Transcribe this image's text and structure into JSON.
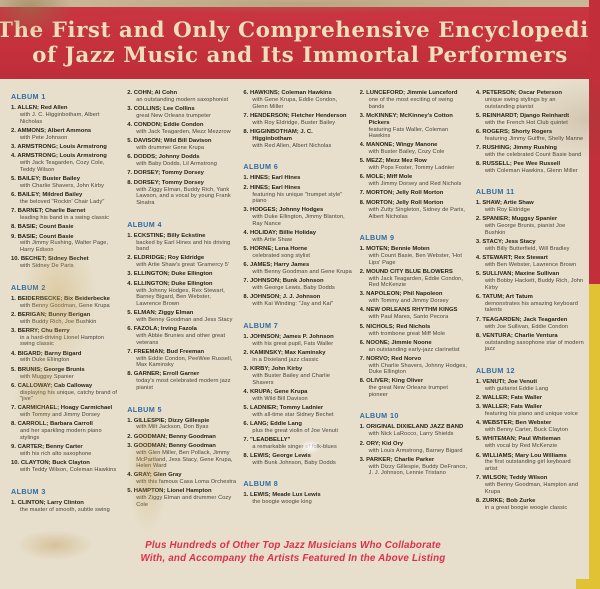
{
  "header": {
    "title_line1": "The First and Only Comprehensive Encyclopedia",
    "title_line2": "of Jazz Music and Its Immortal Performers"
  },
  "footer": {
    "line1": "Plus Hundreds of Other Top Jazz Musicians Who Collaborate",
    "line2": "With, and Accompany the Artists Featured In the Above Listing"
  },
  "colors": {
    "banner_red": "#c5313c",
    "paper_cream": "#e7dfcc",
    "album_heading_blue": "#2e6da3",
    "entry_black": "#262419",
    "footer_red": "#de3048",
    "edge_yellow": "#e2c235"
  },
  "columns": [
    [
      {
        "t": "h",
        "label": "ALBUM 1"
      },
      {
        "t": "e",
        "num": "1.",
        "name": "ALLEN; Red Allen",
        "detail": "with J. C. Higginbotham, Albert Nicholas"
      },
      {
        "t": "e",
        "num": "2.",
        "name": "AMMONS; Albert Ammons",
        "detail": "with Pete Johnson"
      },
      {
        "t": "e",
        "num": "3.",
        "name": "ARMSTRONG; Louis Armstrong"
      },
      {
        "t": "e",
        "num": "4.",
        "name": "ARMSTRONG; Louis Armstrong",
        "detail": "with Jack Teagarden, Cozy Cole, Teddy Wilson"
      },
      {
        "t": "e",
        "num": "5.",
        "name": "BAILEY; Buster Bailey",
        "detail": "with Charlie Shavers, John Kirby"
      },
      {
        "t": "e",
        "num": "6.",
        "name": "BAILEY; Mildred Bailey",
        "detail": "the beloved \"Rockin' Chair Lady\""
      },
      {
        "t": "e",
        "num": "7.",
        "name": "BARNET; Charlie Barnet",
        "detail": "leading his band in a swing classic"
      },
      {
        "t": "e",
        "num": "8.",
        "name": "BASIE; Count Basie"
      },
      {
        "t": "e",
        "num": "9.",
        "name": "BASIE; Count Basie",
        "detail": "with Jimmy Rushing, Walter Page, Harry Edison"
      },
      {
        "t": "e",
        "num": "10.",
        "name": "BECHET; Sidney Bechet",
        "detail": "with Sidney De Paris"
      },
      {
        "t": "h",
        "label": "ALBUM 2"
      },
      {
        "t": "e",
        "num": "1.",
        "name": "BEIDERBECKE; Bix Beiderbecke",
        "detail": "with Benny Goodman, Gene Krupa"
      },
      {
        "t": "e",
        "num": "2.",
        "name": "BERIGAN; Bunny Berigan",
        "detail": "with Buddy Rich, Joe Bushkin"
      },
      {
        "t": "e",
        "num": "3.",
        "name": "BERRY; Chu Berry",
        "detail": "in a hard-driving Lionel Hampton swing classic"
      },
      {
        "t": "e",
        "num": "4.",
        "name": "BIGARD; Barny Bigard",
        "detail": "with Duke Ellington"
      },
      {
        "t": "e",
        "num": "5.",
        "name": "BRUNIS; George Brunis",
        "detail": "with Muggsy Spanier"
      },
      {
        "t": "e",
        "num": "6.",
        "name": "CALLOWAY; Cab Calloway",
        "detail": "displaying his unique, catchy brand of \"jive\""
      },
      {
        "t": "e",
        "num": "7.",
        "name": "CARMICHAEL; Hoagy Carmichael",
        "detail": "with Tommy and Jimmy Dorsey"
      },
      {
        "t": "e",
        "num": "8.",
        "name": "CARROLL; Barbara Carroll",
        "detail": "and her sparkling modern piano stylings"
      },
      {
        "t": "e",
        "num": "9.",
        "name": "CARTER; Benny Carter",
        "detail": "with his rich alto saxophone"
      },
      {
        "t": "e",
        "num": "10.",
        "name": "CLAYTON; Buck Clayton",
        "detail": "with Teddy Wilson, Coleman Hawkins"
      },
      {
        "t": "h",
        "label": "ALBUM 3"
      },
      {
        "t": "e",
        "num": "1.",
        "name": "CLINTON; Larry Clinton",
        "detail": "the master of smooth, subtle swing"
      }
    ],
    [
      {
        "t": "e",
        "num": "2.",
        "name": "COHN; Al Cohn",
        "detail": "an outstanding modern saxophonist"
      },
      {
        "t": "e",
        "num": "3.",
        "name": "COLLINS; Lee Collins",
        "detail": "great New Orleans trumpeter"
      },
      {
        "t": "e",
        "num": "4.",
        "name": "CONDON; Eddie Condon",
        "detail": "with Jack Teagarden, Mezz Mezzrow"
      },
      {
        "t": "e",
        "num": "5.",
        "name": "DAVISON; Wild Bill Davison",
        "detail": "with drummer Gene Krupa"
      },
      {
        "t": "e",
        "num": "6.",
        "name": "DODDS; Johnny Dodds",
        "detail": "with Baby Dodds, Lil Armstrong"
      },
      {
        "t": "e",
        "num": "7.",
        "name": "DORSEY; Tommy Dorsey"
      },
      {
        "t": "e",
        "num": "8.",
        "name": "DORSEY; Tommy Dorsey",
        "detail": "with Ziggy Elman, Buddy Rich, Yank Lawson, and a vocal by young Frank Sinatra"
      },
      {
        "t": "h",
        "label": "ALBUM 4"
      },
      {
        "t": "e",
        "num": "1.",
        "name": "ECKSTINE; Billy Eckstine",
        "detail": "backed by Earl Hines and his driving band"
      },
      {
        "t": "e",
        "num": "2.",
        "name": "ELDRIDGE; Roy Eldridge",
        "detail": "with Artie Shaw's great 'Gramercy 5'"
      },
      {
        "t": "e",
        "num": "3.",
        "name": "ELLINGTON; Duke Ellington"
      },
      {
        "t": "e",
        "num": "4.",
        "name": "ELLINGTON; Duke Ellington",
        "detail": "with Johnny Hodges, Rex Stewart, Barney Bigard, Ben Webster, Lawrence Brown"
      },
      {
        "t": "e",
        "num": "5.",
        "name": "ELMAN; Ziggy Elman",
        "detail": "with Benny Goodman and Jess Stacy"
      },
      {
        "t": "e",
        "num": "6.",
        "name": "FAZOLA; Irving Fazola",
        "detail": "with Abbie Brunies and other great veterans"
      },
      {
        "t": "e",
        "num": "7.",
        "name": "FREEMAN; Bud Freeman",
        "detail": "with Eddie Condon, PeeWee Russell, Max Kaminsky"
      },
      {
        "t": "e",
        "num": "8.",
        "name": "GARNER; Erroll Garner",
        "detail": "today's most celebrated modern jazz pianist"
      },
      {
        "t": "h",
        "label": "ALBUM 5"
      },
      {
        "t": "e",
        "num": "1.",
        "name": "GILLESPIE; Dizzy Gillespie",
        "detail": "with Milt Jackson, Don Byas"
      },
      {
        "t": "e",
        "num": "2.",
        "name": "GOODMAN; Benny Goodman"
      },
      {
        "t": "e",
        "num": "3.",
        "name": "GOODMAN; Benny Goodman",
        "detail": "with Glen Miller, Ben Pollack, Jimmy McPartland, Jess Stacy, Gene Krupa, Helen Ward"
      },
      {
        "t": "e",
        "num": "4.",
        "name": "GRAY; Glen Gray",
        "detail": "with this famous Casa Loma Orchestra"
      },
      {
        "t": "e",
        "num": "5.",
        "name": "HAMPTON; Lionel Hampton",
        "detail": "with Ziggy Elman and drummer Cozy Cole"
      }
    ],
    [
      {
        "t": "e",
        "num": "6.",
        "name": "HAWKINS; Coleman Hawkins",
        "detail": "with Gene Krupa, Eddie Condon, Glenn Miller"
      },
      {
        "t": "e",
        "num": "7.",
        "name": "HENDERSON; Fletcher Henderson",
        "detail": "with Roy Eldridge, Buster Bailey"
      },
      {
        "t": "e",
        "num": "8.",
        "name": "HIGGINBOTHAM; J. C. Higginbotham",
        "detail": "with Red Allen, Albert Nicholas"
      },
      {
        "t": "h",
        "label": "ALBUM 6"
      },
      {
        "t": "e",
        "num": "1.",
        "name": "HINES; Earl Hines"
      },
      {
        "t": "e",
        "num": "2.",
        "name": "HINES; Earl Hines",
        "detail": "featuring his unique \"trumpet style\" piano"
      },
      {
        "t": "e",
        "num": "3.",
        "name": "HODGES; Johnny Hodges",
        "detail": "with Duke Ellington, Jimmy Blanton, Ray Nance"
      },
      {
        "t": "e",
        "num": "4.",
        "name": "HOLIDAY; Billie Holiday",
        "detail": "with Artie Shaw"
      },
      {
        "t": "e",
        "num": "5.",
        "name": "HORNE; Lena Horne",
        "detail": "celebrated song stylist"
      },
      {
        "t": "e",
        "num": "6.",
        "name": "JAMES; Harry James",
        "detail": "with Benny Goodman and Gene Krupa"
      },
      {
        "t": "e",
        "num": "7.",
        "name": "JOHNSON; Bunk Johnson",
        "detail": "with George Lewis, Baby Dodds"
      },
      {
        "t": "e",
        "num": "8.",
        "name": "JOHNSON; J. J. Johnson",
        "detail": "with Kai Winding: \"Jay and Kai\""
      },
      {
        "t": "h",
        "label": "ALBUM 7"
      },
      {
        "t": "e",
        "num": "1.",
        "name": "JOHNSON; James P. Johnson",
        "detail": "with his great pupil, Fats Waller"
      },
      {
        "t": "e",
        "num": "2.",
        "name": "KAMINSKY; Max Kaminsky",
        "detail": "in a Dixieland jazz classic"
      },
      {
        "t": "e",
        "num": "3.",
        "name": "KIRBY; John Kirby",
        "detail": "with Buster Bailey and Charlie Shavers"
      },
      {
        "t": "e",
        "num": "4.",
        "name": "KRUPA; Gene Krupa",
        "detail": "with Wild Bill Davison"
      },
      {
        "t": "e",
        "num": "5.",
        "name": "LADNIER; Tommy Ladnier",
        "detail": "with all-time star Sidney Bechet"
      },
      {
        "t": "e",
        "num": "6.",
        "name": "LANG; Eddie Lang",
        "detail": "plus the great violin of Joe Venuti"
      },
      {
        "t": "e",
        "num": "7.",
        "name": "\"LEADBELLY\"",
        "detail": "a remarkable singer of folk-blues"
      },
      {
        "t": "e",
        "num": "8.",
        "name": "LEWIS; George Lewis",
        "detail": "with Bunk Johnson, Baby Dodds"
      },
      {
        "t": "h",
        "label": "ALBUM 8"
      },
      {
        "t": "e",
        "num": "1.",
        "name": "LEWIS; Meade Lux Lewis",
        "detail": "the boogie woogie king"
      }
    ],
    [
      {
        "t": "e",
        "num": "2.",
        "name": "LUNCEFORD; Jimmie Lunceford",
        "detail": "one of the most exciting of swing bands"
      },
      {
        "t": "e",
        "num": "3.",
        "name": "McKINNEY; McKinney's Cotton Pickers",
        "detail": "featuring Fats Waller, Coleman Hawkins"
      },
      {
        "t": "e",
        "num": "4.",
        "name": "MANONE; Wingy Manone",
        "detail": "with Buster Bailey, Cozy Cole"
      },
      {
        "t": "e",
        "num": "5.",
        "name": "MEZZ; Mezz Mez Row",
        "detail": "with Pops Foster, Tommy Ladnier"
      },
      {
        "t": "e",
        "num": "6.",
        "name": "MOLE; Miff Mole",
        "detail": "with Jimmy Dorsey and Red Nichols"
      },
      {
        "t": "e",
        "num": "7.",
        "name": "MORTON; Jelly Roll Morton"
      },
      {
        "t": "e",
        "num": "8.",
        "name": "MORTON; Jelly Roll Morton",
        "detail": "with Zutty Singleton, Sidney de Paris, Albert Nicholas"
      },
      {
        "t": "h",
        "label": "ALBUM 9"
      },
      {
        "t": "e",
        "num": "1.",
        "name": "MOTEN; Bennie Moten",
        "detail": "with Count Basie, Ben Webster, 'Hot Lips' Page"
      },
      {
        "t": "e",
        "num": "2.",
        "name": "MOUND CITY BLUE BLOWERS",
        "detail": "with Jack Teagarden, Eddie Condon, Red McKenzie"
      },
      {
        "t": "e",
        "num": "3.",
        "name": "NAPOLEON; Phil Napoleon",
        "detail": "with Tommy and Jimmy Dorsey"
      },
      {
        "t": "e",
        "num": "4.",
        "name": "NEW ORLEANS RHYTHM KINGS",
        "detail": "with Paul Mares, Santo Pecora"
      },
      {
        "t": "e",
        "num": "5.",
        "name": "NICHOLS; Red Nichols",
        "detail": "with trombone great Miff Mole"
      },
      {
        "t": "e",
        "num": "6.",
        "name": "NOONE; Jimmie Noone",
        "detail": "an outstanding early-jazz clarinetist"
      },
      {
        "t": "e",
        "num": "7.",
        "name": "NORVO; Red Norvo",
        "detail": "with Charlie Shavers, Johnny Hodges, Duke Ellington"
      },
      {
        "t": "e",
        "num": "8.",
        "name": "OLIVER; King Oliver",
        "detail": "the great New Orleans trumpet pioneer"
      },
      {
        "t": "h",
        "label": "ALBUM 10"
      },
      {
        "t": "e",
        "num": "1.",
        "name": "ORIGINAL DIXIELAND JAZZ BAND",
        "detail": "with Nick LaRocco, Larry Shields"
      },
      {
        "t": "e",
        "num": "2.",
        "name": "ORY; Kid Ory",
        "detail": "with Louis Armstrong, Barney Bigard"
      },
      {
        "t": "e",
        "num": "3.",
        "name": "PARKER; Charlie Parker",
        "detail": "with Dizzy Gillespie, Buddy DeFranco, J. J. Johnson, Lennie Tristano"
      }
    ],
    [
      {
        "t": "e",
        "num": "4.",
        "name": "PETERSON; Oscar Peterson",
        "detail": "unique swing stylings by an outstanding pianist"
      },
      {
        "t": "e",
        "num": "5.",
        "name": "REINHARDT; Django Reinhardt",
        "detail": "with the French Hot Club quintet"
      },
      {
        "t": "e",
        "num": "6.",
        "name": "ROGERS; Shorty Rogers",
        "detail": "featuring Jimmy Guiffre, Shelly Manne"
      },
      {
        "t": "e",
        "num": "7.",
        "name": "RUSHING; Jimmy Rushing",
        "detail": "with the celebrated Count Basie band"
      },
      {
        "t": "e",
        "num": "8.",
        "name": "RUSSELL; Pee Wee Russell",
        "detail": "with Coleman Hawkins, Glenn Miller"
      },
      {
        "t": "h",
        "label": "ALBUM 11"
      },
      {
        "t": "e",
        "num": "1.",
        "name": "SHAW; Artie Shaw",
        "detail": "with Roy Eldridge"
      },
      {
        "t": "e",
        "num": "2.",
        "name": "SPANIER; Muggsy Spanier",
        "detail": "with George Brunis, pianist Joe Bushkin"
      },
      {
        "t": "e",
        "num": "3.",
        "name": "STACY; Jess Stacy",
        "detail": "with Billy Butterfield, Will Bradley"
      },
      {
        "t": "e",
        "num": "4.",
        "name": "STEWART; Rex Stewart",
        "detail": "with Ben Webster, Lawrence Brown"
      },
      {
        "t": "e",
        "num": "5.",
        "name": "SULLIVAN; Maxine Sullivan",
        "detail": "with Bobby Hackett, Buddy Rich, John Kirby"
      },
      {
        "t": "e",
        "num": "6.",
        "name": "TATUM; Art Tatum",
        "detail": "demonstrates his amazing keyboard talents"
      },
      {
        "t": "e",
        "num": "7.",
        "name": "TEAGARDEN; Jack Teagarden",
        "detail": "with Joe Sullivan, Eddie Condon"
      },
      {
        "t": "e",
        "num": "8.",
        "name": "VENTURA; Charlie Ventura",
        "detail": "outstanding saxophone star of modern jazz"
      },
      {
        "t": "h",
        "label": "ALBUM 12"
      },
      {
        "t": "e",
        "num": "1.",
        "name": "VENUTI; Joe Venuti",
        "detail": "with guitarist Eddie Lang"
      },
      {
        "t": "e",
        "num": "2.",
        "name": "WALLER; Fats Waller"
      },
      {
        "t": "e",
        "num": "3.",
        "name": "WALLER; Fats Waller",
        "detail": "featuring his piano and unique voice"
      },
      {
        "t": "e",
        "num": "4.",
        "name": "WEBSTER; Ben Webster",
        "detail": "with Benny Carter, Buck Clayton"
      },
      {
        "t": "e",
        "num": "5.",
        "name": "WHITEMAN; Paul Whiteman",
        "detail": "with vocal by Red McKenzie"
      },
      {
        "t": "e",
        "num": "6.",
        "name": "WILLIAMS; Mary Lou Williams",
        "detail": "the first outstanding girl keyboard artist"
      },
      {
        "t": "e",
        "num": "7.",
        "name": "WILSON; Teddy Wilson",
        "detail": "with Benny Goodman, Hampton and Krupa"
      },
      {
        "t": "e",
        "num": "8.",
        "name": "ZURKE; Bob Zurke",
        "detail": "in a great boogie woogie classic"
      }
    ]
  ]
}
